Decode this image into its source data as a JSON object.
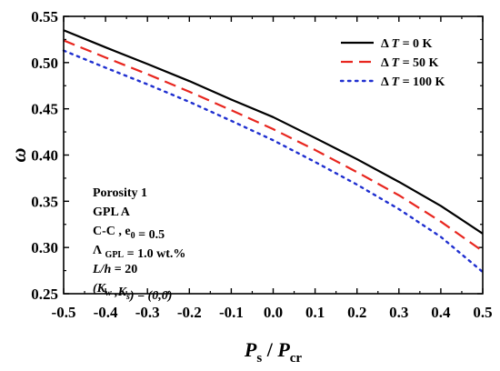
{
  "chart_data": {
    "type": "line",
    "xlim": [
      -0.5,
      0.5
    ],
    "ylim": [
      0.25,
      0.55
    ],
    "x_ticks": [
      -0.5,
      -0.4,
      -0.3,
      -0.2,
      -0.1,
      0.0,
      0.1,
      0.2,
      0.3,
      0.4,
      0.5
    ],
    "x_tick_labels": [
      "-0.5",
      "-0.4",
      "-0.3",
      "-0.2",
      "-0.1",
      "0.0",
      "0.1",
      "0.2",
      "0.3",
      "0.4",
      "0.5"
    ],
    "y_ticks": [
      0.25,
      0.3,
      0.35,
      0.4,
      0.45,
      0.5,
      0.55
    ],
    "y_tick_labels": [
      "0.25",
      "0.30",
      "0.35",
      "0.40",
      "0.45",
      "0.50",
      "0.55"
    ],
    "xlabel": {
      "main": "P",
      "sub1": "s",
      "sep": " / ",
      "main2": "P",
      "sub2": "cr"
    },
    "ylabel": "ω",
    "legend_position": "top-right",
    "series": [
      {
        "name": "Δ T = 0 K",
        "legend_prefix": "Δ ",
        "legend_var": "T",
        "legend_suffix": " = 0 K",
        "color": "#000000",
        "dash": "solid",
        "x": [
          -0.5,
          -0.4,
          -0.3,
          -0.2,
          -0.1,
          0.0,
          0.1,
          0.2,
          0.3,
          0.4,
          0.5
        ],
        "values": [
          0.535,
          0.5165,
          0.4985,
          0.48,
          0.46,
          0.441,
          0.4185,
          0.3955,
          0.371,
          0.345,
          0.315
        ]
      },
      {
        "name": "Δ T = 50 K",
        "legend_prefix": "Δ ",
        "legend_var": "T",
        "legend_suffix": " = 50 K",
        "color": "#e8261f",
        "dash": "dashed",
        "x": [
          -0.5,
          -0.4,
          -0.3,
          -0.2,
          -0.1,
          0.0,
          0.1,
          0.2,
          0.3,
          0.4,
          0.5
        ],
        "values": [
          0.524,
          0.5055,
          0.4875,
          0.4685,
          0.4485,
          0.428,
          0.4055,
          0.3815,
          0.3565,
          0.328,
          0.296
        ]
      },
      {
        "name": "Δ T = 100 K",
        "legend_prefix": "Δ ",
        "legend_var": "T",
        "legend_suffix": " = 100 K",
        "color": "#1f2fd0",
        "dash": "dotted",
        "x": [
          -0.5,
          -0.4,
          -0.3,
          -0.2,
          -0.1,
          0.0,
          0.1,
          0.2,
          0.3,
          0.4,
          0.5
        ],
        "values": [
          0.513,
          0.4945,
          0.4765,
          0.4575,
          0.437,
          0.416,
          0.3925,
          0.368,
          0.3415,
          0.3115,
          0.2735
        ]
      }
    ],
    "annotations": [
      [
        {
          "t": "Porosity 1"
        }
      ],
      [
        {
          "t": "GPL A"
        }
      ],
      [
        {
          "t": "C-C , e"
        },
        {
          "t": "0",
          "sub": true
        },
        {
          "t": " = 0.5"
        }
      ],
      [
        {
          "t": "Λ "
        },
        {
          "t": "GPL",
          "sub": true
        },
        {
          "t": " = 1.0 wt.%"
        }
      ],
      [
        {
          "t": "L/h",
          "italic": true
        },
        {
          "t": " = 20"
        }
      ],
      [
        {
          "t": "(K",
          "italic": true
        },
        {
          "t": "w",
          "sub": true,
          "italic": true
        },
        {
          "t": " ,K",
          "italic": true
        },
        {
          "t": "s",
          "sub": true,
          "italic": true
        },
        {
          "t": ") = (0,0)",
          "italic": true
        }
      ]
    ]
  }
}
